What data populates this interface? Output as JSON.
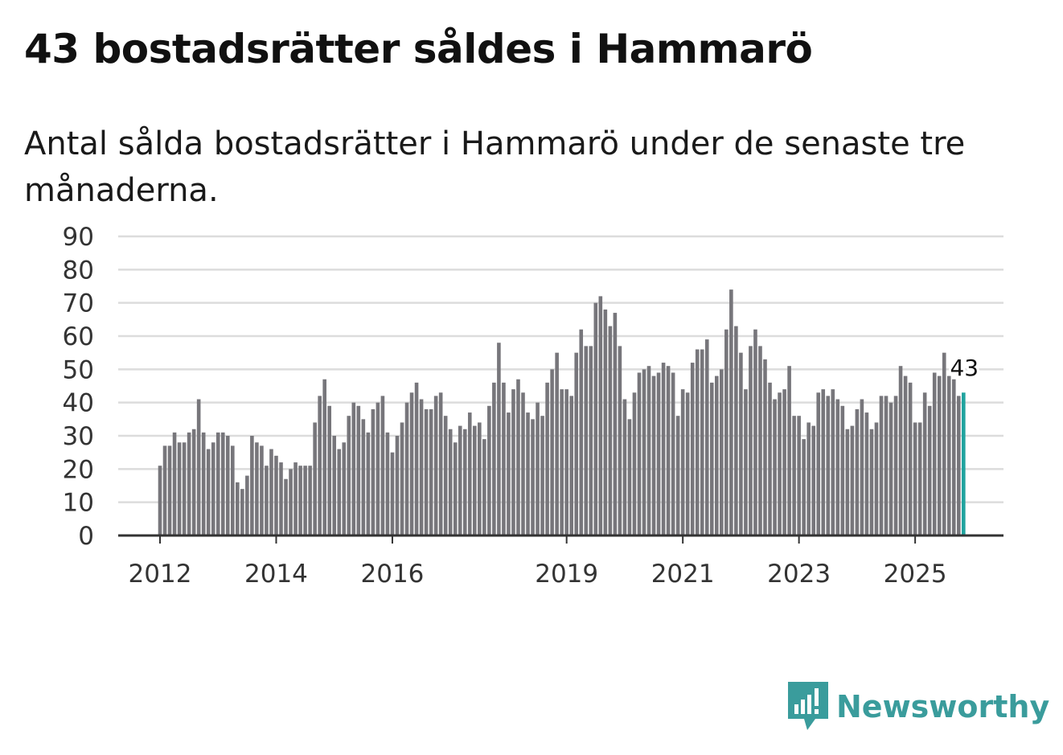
{
  "header": {
    "title": "43 bostadsrätter såldes i Hammarö",
    "subtitle": "Antal sålda bostadsrätter i Hammarö under de senaste tre månaderna."
  },
  "brand": {
    "name": "Newsworthy",
    "icon": "newsworthy-logo-icon",
    "color": "#3a9c9c"
  },
  "chart_data": {
    "type": "bar",
    "title": "43 bostadsrätter såldes i Hammarö",
    "subtitle": "Antal sålda bostadsrätter i Hammarö under de senaste tre månaderna.",
    "xlabel": "",
    "ylabel": "",
    "ylim": [
      0,
      90
    ],
    "y_ticks": [
      0,
      10,
      20,
      30,
      40,
      50,
      60,
      70,
      80,
      90
    ],
    "grid": true,
    "x_tick_labels": [
      {
        "label": "2012",
        "index": 0
      },
      {
        "label": "2014",
        "index": 24
      },
      {
        "label": "2016",
        "index": 48
      },
      {
        "label": "2019",
        "index": 84
      },
      {
        "label": "2021",
        "index": 108
      },
      {
        "label": "2023",
        "index": 132
      },
      {
        "label": "2025",
        "index": 156
      }
    ],
    "colors": {
      "bar": "#77767b",
      "highlight": "#20a39e",
      "grid": "#dcdcdc",
      "axis": "#333333"
    },
    "highlight_label": "43",
    "start": "2012-01",
    "values": [
      21,
      27,
      27,
      31,
      28,
      28,
      31,
      32,
      41,
      31,
      26,
      28,
      31,
      31,
      30,
      27,
      16,
      14,
      18,
      30,
      28,
      27,
      21,
      26,
      24,
      22,
      17,
      20,
      22,
      21,
      21,
      21,
      34,
      42,
      47,
      39,
      30,
      26,
      28,
      36,
      40,
      39,
      35,
      31,
      38,
      40,
      42,
      31,
      25,
      30,
      34,
      40,
      43,
      46,
      41,
      38,
      38,
      42,
      43,
      36,
      32,
      28,
      33,
      32,
      37,
      33,
      34,
      29,
      39,
      46,
      58,
      46,
      37,
      44,
      47,
      43,
      37,
      35,
      40,
      36,
      46,
      50,
      55,
      44,
      44,
      42,
      55,
      62,
      57,
      57,
      70,
      72,
      68,
      63,
      67,
      57,
      41,
      35,
      43,
      49,
      50,
      51,
      48,
      49,
      52,
      51,
      49,
      36,
      44,
      43,
      52,
      56,
      56,
      59,
      46,
      48,
      50,
      62,
      74,
      63,
      55,
      44,
      57,
      62,
      57,
      53,
      46,
      41,
      43,
      44,
      51,
      36,
      36,
      29,
      34,
      33,
      43,
      44,
      42,
      44,
      41,
      39,
      32,
      33,
      38,
      41,
      37,
      32,
      34,
      42,
      42,
      40,
      42,
      51,
      48,
      46,
      34,
      34,
      43,
      39,
      49,
      48,
      55,
      48,
      47,
      42,
      43
    ]
  }
}
